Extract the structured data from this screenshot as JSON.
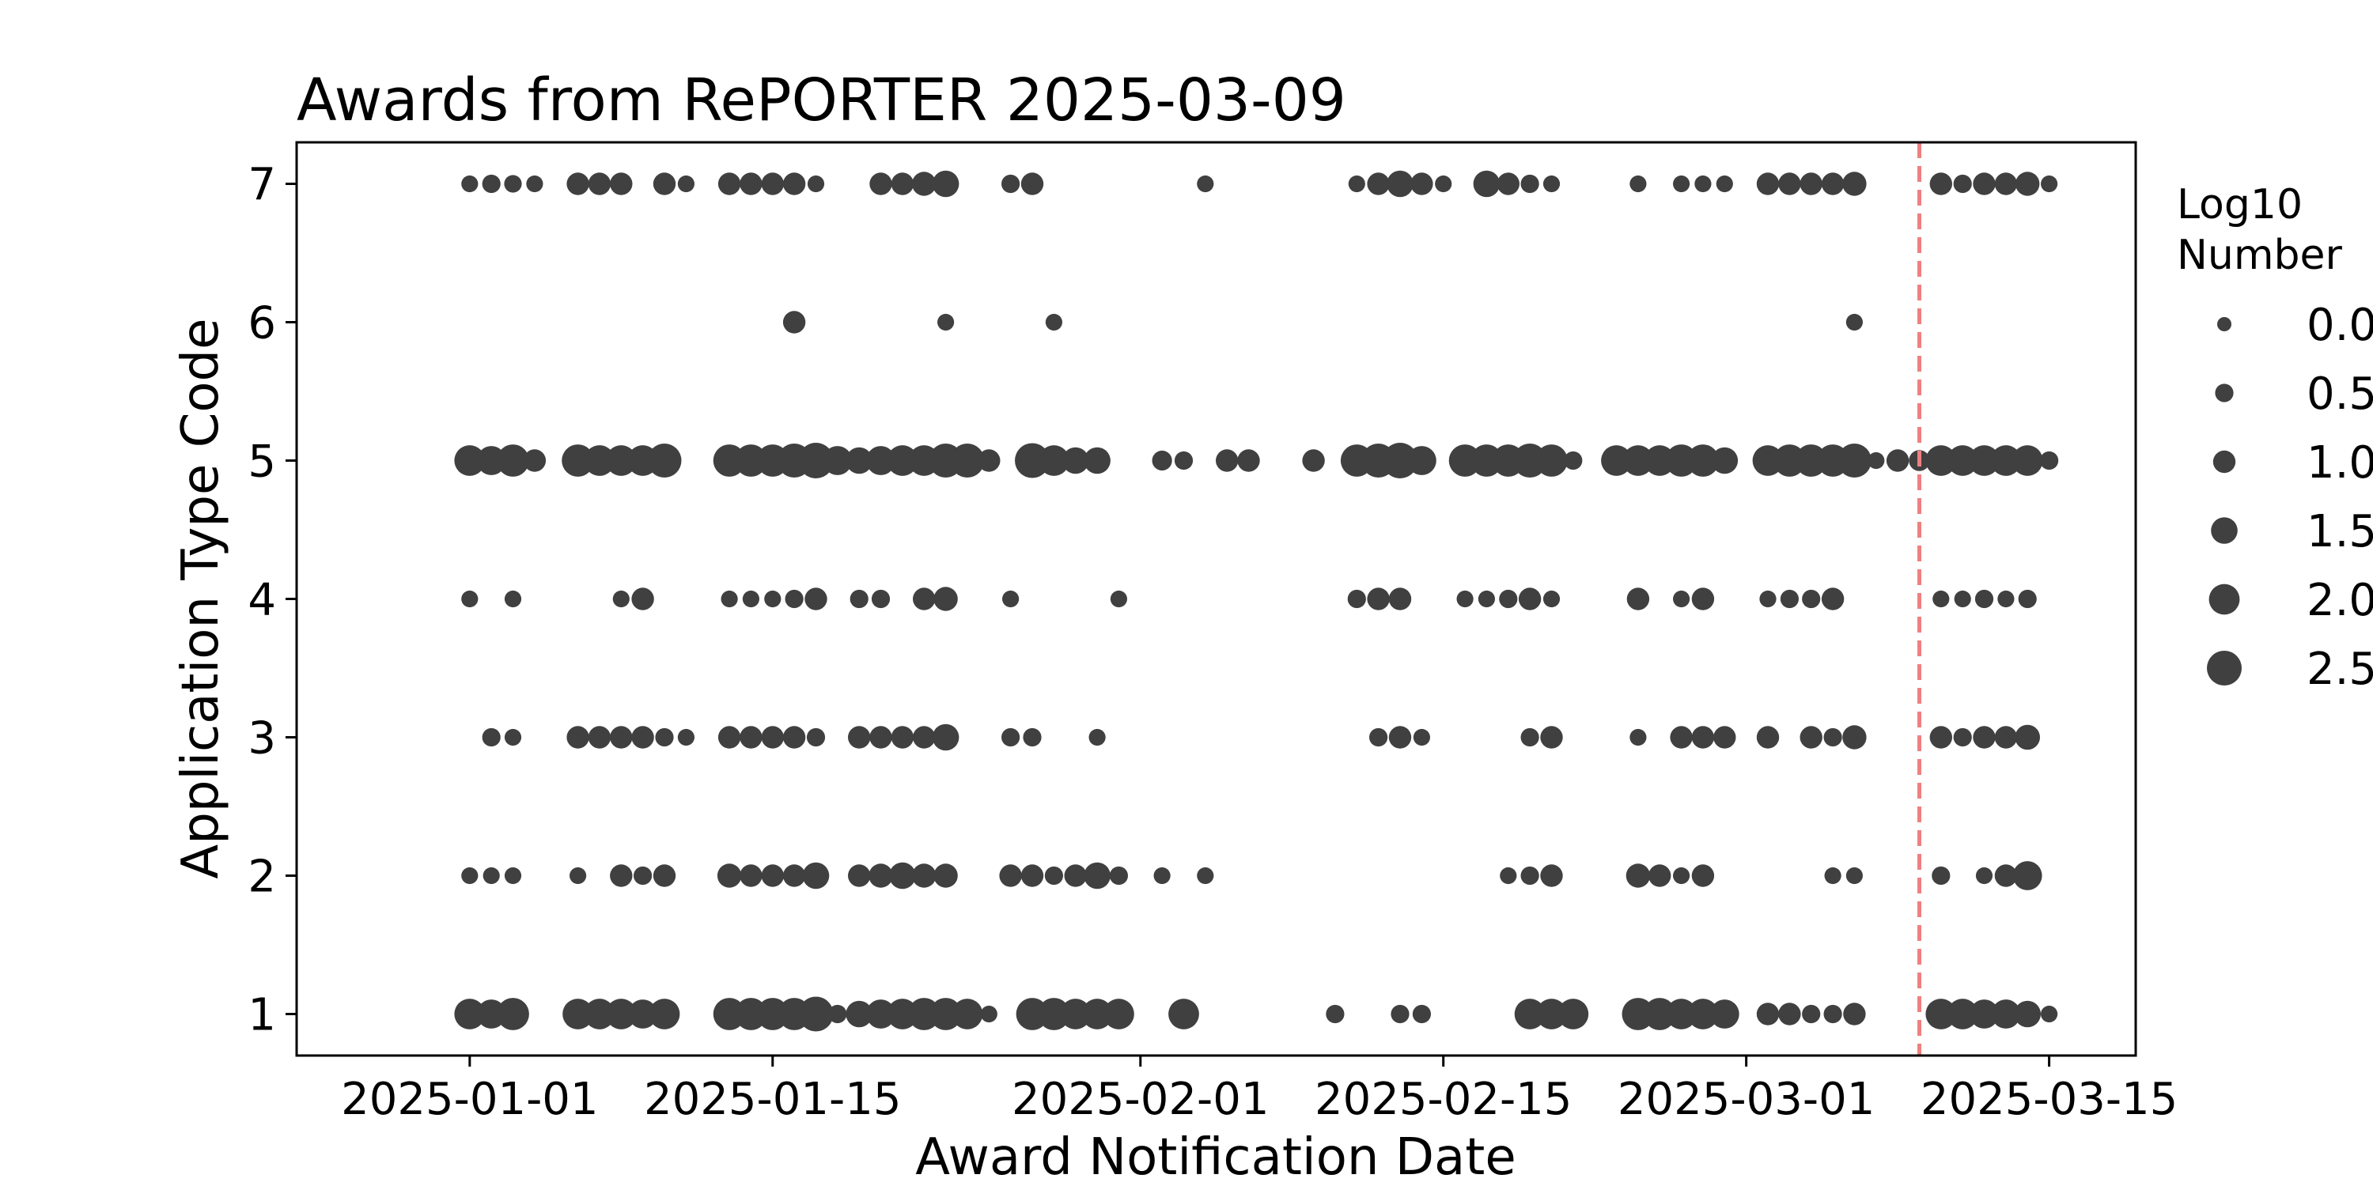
{
  "chart_data": {
    "type": "scatter",
    "title": "Awards from RePORTER 2025-03-09",
    "xlabel": "Award Notification Date",
    "ylabel": "Application Type Code",
    "xlim": [
      "2024-12-24",
      "2025-03-19"
    ],
    "ylim": [
      0.7,
      7.3
    ],
    "x_ticks": [
      "2025-01-01",
      "2025-01-15",
      "2025-02-01",
      "2025-02-15",
      "2025-03-01",
      "2025-03-15"
    ],
    "y_ticks": [
      1,
      2,
      3,
      4,
      5,
      6,
      7
    ],
    "reference_line": {
      "date": "2025-03-09",
      "color": "#f08080",
      "style": "dashed"
    },
    "marker_color": "#404040",
    "grid": false,
    "legend": {
      "title": [
        "Log10",
        "Number"
      ],
      "placement": "right, outside plot",
      "entries": [
        "0.0",
        "0.5",
        "1.0",
        "1.5",
        "2.0",
        "2.5"
      ],
      "entry_values": [
        0.0,
        0.5,
        1.0,
        1.5,
        2.0,
        2.5
      ]
    },
    "size_variable": "log10 number of awards",
    "series": [
      {
        "code": 7,
        "points": [
          [
            "2025-01-01",
            0.3
          ],
          [
            "2025-01-02",
            0.5
          ],
          [
            "2025-01-03",
            0.4
          ],
          [
            "2025-01-04",
            0.3
          ],
          [
            "2025-01-06",
            1.0
          ],
          [
            "2025-01-07",
            1.0
          ],
          [
            "2025-01-08",
            1.0
          ],
          [
            "2025-01-10",
            1.0
          ],
          [
            "2025-01-11",
            0.3
          ],
          [
            "2025-01-13",
            1.0
          ],
          [
            "2025-01-14",
            1.0
          ],
          [
            "2025-01-15",
            1.0
          ],
          [
            "2025-01-16",
            1.0
          ],
          [
            "2025-01-17",
            0.3
          ],
          [
            "2025-01-20",
            1.0
          ],
          [
            "2025-01-21",
            1.0
          ],
          [
            "2025-01-22",
            1.2
          ],
          [
            "2025-01-23",
            1.5
          ],
          [
            "2025-01-26",
            0.5
          ],
          [
            "2025-01-27",
            1.0
          ],
          [
            "2025-02-04",
            0.3
          ],
          [
            "2025-02-11",
            0.3
          ],
          [
            "2025-02-12",
            1.0
          ],
          [
            "2025-02-13",
            1.5
          ],
          [
            "2025-02-14",
            1.0
          ],
          [
            "2025-02-15",
            0.3
          ],
          [
            "2025-02-17",
            1.5
          ],
          [
            "2025-02-18",
            1.0
          ],
          [
            "2025-02-19",
            0.5
          ],
          [
            "2025-02-20",
            0.3
          ],
          [
            "2025-02-24",
            0.3
          ],
          [
            "2025-02-26",
            0.3
          ],
          [
            "2025-02-27",
            0.3
          ],
          [
            "2025-02-28",
            0.3
          ],
          [
            "2025-03-02",
            1.0
          ],
          [
            "2025-03-03",
            1.0
          ],
          [
            "2025-03-04",
            1.0
          ],
          [
            "2025-03-05",
            1.0
          ],
          [
            "2025-03-06",
            1.2
          ],
          [
            "2025-03-10",
            1.0
          ],
          [
            "2025-03-11",
            0.5
          ],
          [
            "2025-03-12",
            1.0
          ],
          [
            "2025-03-13",
            1.0
          ],
          [
            "2025-03-14",
            1.2
          ],
          [
            "2025-03-15",
            0.3
          ]
        ]
      },
      {
        "code": 6,
        "points": [
          [
            "2025-01-16",
            1.0
          ],
          [
            "2025-01-23",
            0.3
          ],
          [
            "2025-01-28",
            0.3
          ],
          [
            "2025-03-06",
            0.3
          ]
        ]
      },
      {
        "code": 5,
        "points": [
          [
            "2025-01-01",
            2.0
          ],
          [
            "2025-01-02",
            1.8
          ],
          [
            "2025-01-03",
            2.2
          ],
          [
            "2025-01-04",
            1.0
          ],
          [
            "2025-01-06",
            2.2
          ],
          [
            "2025-01-07",
            2.0
          ],
          [
            "2025-01-08",
            2.0
          ],
          [
            "2025-01-09",
            2.0
          ],
          [
            "2025-01-10",
            2.4
          ],
          [
            "2025-01-13",
            2.2
          ],
          [
            "2025-01-14",
            2.2
          ],
          [
            "2025-01-15",
            2.2
          ],
          [
            "2025-01-16",
            2.4
          ],
          [
            "2025-01-17",
            2.6
          ],
          [
            "2025-01-18",
            1.8
          ],
          [
            "2025-01-19",
            1.5
          ],
          [
            "2025-01-20",
            1.8
          ],
          [
            "2025-01-21",
            2.0
          ],
          [
            "2025-01-22",
            2.0
          ],
          [
            "2025-01-23",
            2.4
          ],
          [
            "2025-01-24",
            2.4
          ],
          [
            "2025-01-25",
            1.0
          ],
          [
            "2025-01-27",
            2.5
          ],
          [
            "2025-01-28",
            2.0
          ],
          [
            "2025-01-29",
            1.5
          ],
          [
            "2025-01-30",
            1.5
          ],
          [
            "2025-02-02",
            0.7
          ],
          [
            "2025-02-03",
            0.5
          ],
          [
            "2025-02-05",
            1.0
          ],
          [
            "2025-02-06",
            1.0
          ],
          [
            "2025-02-09",
            1.0
          ],
          [
            "2025-02-11",
            2.2
          ],
          [
            "2025-02-12",
            2.4
          ],
          [
            "2025-02-13",
            2.6
          ],
          [
            "2025-02-14",
            1.8
          ],
          [
            "2025-02-16",
            2.2
          ],
          [
            "2025-02-17",
            2.2
          ],
          [
            "2025-02-18",
            2.2
          ],
          [
            "2025-02-19",
            2.4
          ],
          [
            "2025-02-20",
            2.2
          ],
          [
            "2025-02-21",
            0.5
          ],
          [
            "2025-02-23",
            2.0
          ],
          [
            "2025-02-24",
            2.0
          ],
          [
            "2025-02-25",
            2.0
          ],
          [
            "2025-02-26",
            2.2
          ],
          [
            "2025-02-27",
            2.2
          ],
          [
            "2025-02-28",
            1.5
          ],
          [
            "2025-03-02",
            2.0
          ],
          [
            "2025-03-03",
            2.2
          ],
          [
            "2025-03-04",
            2.2
          ],
          [
            "2025-03-05",
            2.2
          ],
          [
            "2025-03-06",
            2.4
          ],
          [
            "2025-03-07",
            0.3
          ],
          [
            "2025-03-08",
            1.0
          ],
          [
            "2025-03-09",
            0.8
          ],
          [
            "2025-03-10",
            2.0
          ],
          [
            "2025-03-11",
            2.0
          ],
          [
            "2025-03-12",
            2.0
          ],
          [
            "2025-03-13",
            2.0
          ],
          [
            "2025-03-14",
            2.0
          ],
          [
            "2025-03-15",
            0.5
          ]
        ]
      },
      {
        "code": 4,
        "points": [
          [
            "2025-01-01",
            0.3
          ],
          [
            "2025-01-03",
            0.3
          ],
          [
            "2025-01-08",
            0.3
          ],
          [
            "2025-01-09",
            1.0
          ],
          [
            "2025-01-13",
            0.3
          ],
          [
            "2025-01-14",
            0.3
          ],
          [
            "2025-01-15",
            0.3
          ],
          [
            "2025-01-16",
            0.5
          ],
          [
            "2025-01-17",
            1.0
          ],
          [
            "2025-01-19",
            0.5
          ],
          [
            "2025-01-20",
            0.5
          ],
          [
            "2025-01-22",
            1.0
          ],
          [
            "2025-01-23",
            1.2
          ],
          [
            "2025-01-26",
            0.3
          ],
          [
            "2025-01-31",
            0.3
          ],
          [
            "2025-02-11",
            0.5
          ],
          [
            "2025-02-12",
            1.0
          ],
          [
            "2025-02-13",
            1.0
          ],
          [
            "2025-02-16",
            0.3
          ],
          [
            "2025-02-17",
            0.3
          ],
          [
            "2025-02-18",
            0.5
          ],
          [
            "2025-02-19",
            1.0
          ],
          [
            "2025-02-20",
            0.3
          ],
          [
            "2025-02-24",
            1.0
          ],
          [
            "2025-02-26",
            0.3
          ],
          [
            "2025-02-27",
            1.0
          ],
          [
            "2025-03-02",
            0.3
          ],
          [
            "2025-03-03",
            0.5
          ],
          [
            "2025-03-04",
            0.5
          ],
          [
            "2025-03-05",
            1.0
          ],
          [
            "2025-03-10",
            0.3
          ],
          [
            "2025-03-11",
            0.3
          ],
          [
            "2025-03-12",
            0.5
          ],
          [
            "2025-03-13",
            0.3
          ],
          [
            "2025-03-14",
            0.5
          ]
        ]
      },
      {
        "code": 3,
        "points": [
          [
            "2025-01-02",
            0.5
          ],
          [
            "2025-01-03",
            0.3
          ],
          [
            "2025-01-06",
            1.0
          ],
          [
            "2025-01-07",
            1.0
          ],
          [
            "2025-01-08",
            1.0
          ],
          [
            "2025-01-09",
            1.0
          ],
          [
            "2025-01-10",
            0.5
          ],
          [
            "2025-01-11",
            0.3
          ],
          [
            "2025-01-13",
            1.0
          ],
          [
            "2025-01-14",
            1.0
          ],
          [
            "2025-01-15",
            1.0
          ],
          [
            "2025-01-16",
            1.0
          ],
          [
            "2025-01-17",
            0.5
          ],
          [
            "2025-01-19",
            1.0
          ],
          [
            "2025-01-20",
            1.0
          ],
          [
            "2025-01-21",
            1.0
          ],
          [
            "2025-01-22",
            1.0
          ],
          [
            "2025-01-23",
            1.5
          ],
          [
            "2025-01-26",
            0.5
          ],
          [
            "2025-01-27",
            0.5
          ],
          [
            "2025-01-30",
            0.3
          ],
          [
            "2025-02-12",
            0.5
          ],
          [
            "2025-02-13",
            1.0
          ],
          [
            "2025-02-14",
            0.3
          ],
          [
            "2025-02-19",
            0.5
          ],
          [
            "2025-02-20",
            1.0
          ],
          [
            "2025-02-24",
            0.3
          ],
          [
            "2025-02-26",
            1.0
          ],
          [
            "2025-02-27",
            1.0
          ],
          [
            "2025-02-28",
            1.0
          ],
          [
            "2025-03-02",
            1.0
          ],
          [
            "2025-03-04",
            1.0
          ],
          [
            "2025-03-05",
            0.5
          ],
          [
            "2025-03-06",
            1.2
          ],
          [
            "2025-03-10",
            1.0
          ],
          [
            "2025-03-11",
            0.5
          ],
          [
            "2025-03-12",
            1.0
          ],
          [
            "2025-03-13",
            1.0
          ],
          [
            "2025-03-14",
            1.3
          ]
        ]
      },
      {
        "code": 2,
        "points": [
          [
            "2025-01-01",
            0.3
          ],
          [
            "2025-01-02",
            0.3
          ],
          [
            "2025-01-03",
            0.3
          ],
          [
            "2025-01-06",
            0.3
          ],
          [
            "2025-01-08",
            1.0
          ],
          [
            "2025-01-09",
            0.5
          ],
          [
            "2025-01-10",
            1.0
          ],
          [
            "2025-01-13",
            1.2
          ],
          [
            "2025-01-14",
            1.0
          ],
          [
            "2025-01-15",
            1.0
          ],
          [
            "2025-01-16",
            1.0
          ],
          [
            "2025-01-17",
            1.5
          ],
          [
            "2025-01-19",
            1.0
          ],
          [
            "2025-01-20",
            1.2
          ],
          [
            "2025-01-21",
            1.5
          ],
          [
            "2025-01-22",
            1.2
          ],
          [
            "2025-01-23",
            1.2
          ],
          [
            "2025-01-26",
            1.0
          ],
          [
            "2025-01-27",
            1.0
          ],
          [
            "2025-01-28",
            0.5
          ],
          [
            "2025-01-29",
            1.0
          ],
          [
            "2025-01-30",
            1.5
          ],
          [
            "2025-01-31",
            0.5
          ],
          [
            "2025-02-02",
            0.3
          ],
          [
            "2025-02-04",
            0.3
          ],
          [
            "2025-02-18",
            0.3
          ],
          [
            "2025-02-19",
            0.5
          ],
          [
            "2025-02-20",
            1.0
          ],
          [
            "2025-02-24",
            1.2
          ],
          [
            "2025-02-25",
            1.0
          ],
          [
            "2025-02-26",
            0.3
          ],
          [
            "2025-02-27",
            1.0
          ],
          [
            "2025-03-05",
            0.3
          ],
          [
            "2025-03-06",
            0.3
          ],
          [
            "2025-03-10",
            0.5
          ],
          [
            "2025-03-12",
            0.3
          ],
          [
            "2025-03-13",
            1.0
          ],
          [
            "2025-03-14",
            1.8
          ]
        ]
      },
      {
        "code": 1,
        "points": [
          [
            "2025-01-01",
            2.0
          ],
          [
            "2025-01-02",
            1.8
          ],
          [
            "2025-01-03",
            2.2
          ],
          [
            "2025-01-06",
            2.0
          ],
          [
            "2025-01-07",
            2.0
          ],
          [
            "2025-01-08",
            2.0
          ],
          [
            "2025-01-09",
            1.8
          ],
          [
            "2025-01-10",
            2.0
          ],
          [
            "2025-01-13",
            2.2
          ],
          [
            "2025-01-14",
            2.2
          ],
          [
            "2025-01-15",
            2.2
          ],
          [
            "2025-01-16",
            2.2
          ],
          [
            "2025-01-17",
            2.5
          ],
          [
            "2025-01-18",
            0.5
          ],
          [
            "2025-01-19",
            1.5
          ],
          [
            "2025-01-20",
            1.8
          ],
          [
            "2025-01-21",
            2.0
          ],
          [
            "2025-01-22",
            2.2
          ],
          [
            "2025-01-23",
            2.2
          ],
          [
            "2025-01-24",
            2.0
          ],
          [
            "2025-01-25",
            0.3
          ],
          [
            "2025-01-27",
            2.2
          ],
          [
            "2025-01-28",
            2.2
          ],
          [
            "2025-01-29",
            2.0
          ],
          [
            "2025-01-30",
            2.0
          ],
          [
            "2025-01-31",
            2.0
          ],
          [
            "2025-02-03",
            2.0
          ],
          [
            "2025-02-10",
            0.5
          ],
          [
            "2025-02-13",
            0.5
          ],
          [
            "2025-02-14",
            0.5
          ],
          [
            "2025-02-19",
            2.0
          ],
          [
            "2025-02-20",
            2.0
          ],
          [
            "2025-02-21",
            2.0
          ],
          [
            "2025-02-24",
            2.2
          ],
          [
            "2025-02-25",
            2.2
          ],
          [
            "2025-02-26",
            2.0
          ],
          [
            "2025-02-27",
            2.0
          ],
          [
            "2025-02-28",
            1.8
          ],
          [
            "2025-03-02",
            1.0
          ],
          [
            "2025-03-03",
            1.0
          ],
          [
            "2025-03-04",
            0.5
          ],
          [
            "2025-03-05",
            0.5
          ],
          [
            "2025-03-06",
            1.0
          ],
          [
            "2025-03-10",
            2.0
          ],
          [
            "2025-03-11",
            2.0
          ],
          [
            "2025-03-12",
            1.8
          ],
          [
            "2025-03-13",
            1.8
          ],
          [
            "2025-03-14",
            1.5
          ],
          [
            "2025-03-15",
            0.3
          ]
        ]
      }
    ]
  }
}
